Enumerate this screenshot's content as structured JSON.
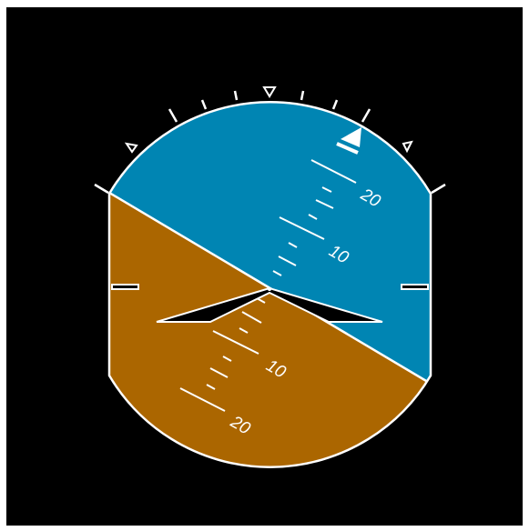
{
  "attitude_indicator": {
    "roll_deg": -27,
    "pitch_labels": {
      "up_10": "10",
      "up_20": "20",
      "down_10": "10",
      "down_20": "20"
    },
    "colors": {
      "sky": "#0085b3",
      "ground": "#ab6600",
      "background": "#000000",
      "markings": "#ffffff"
    },
    "icons": {
      "aircraft_symbol": "chevron-wings-icon",
      "roll_pointer": "triangle-pointer-icon",
      "zero_roll_index": "inverted-triangle-icon"
    }
  }
}
